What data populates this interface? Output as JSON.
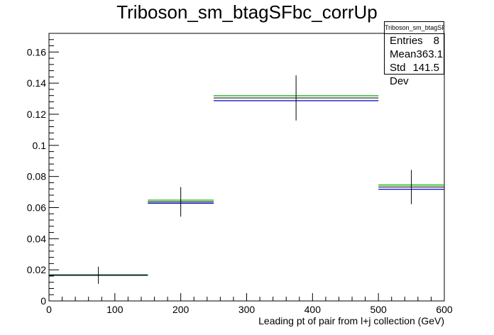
{
  "chart_data": {
    "type": "histogram",
    "title": "Triboson_sm_btagSFbc_corrUp",
    "xlabel": "Leading pt of pair from l+j collection (GeV)",
    "ylabel": "",
    "xlim": [
      0,
      600
    ],
    "ylim": [
      0,
      0.172
    ],
    "x_ticks": [
      "0",
      "100",
      "200",
      "300",
      "400",
      "500",
      "600"
    ],
    "y_ticks": [
      "0",
      "0.02",
      "0.04",
      "0.06",
      "0.08",
      "0.1",
      "0.12",
      "0.14",
      "0.16"
    ],
    "grid": false,
    "bins": [
      {
        "x_low": 0,
        "x_high": 150,
        "center": 75,
        "value": 0.0165,
        "error": 0.0055
      },
      {
        "x_low": 150,
        "x_high": 250,
        "center": 200,
        "value": 0.0637,
        "error": 0.0095
      },
      {
        "x_low": 250,
        "x_high": 500,
        "center": 375,
        "value": 0.1305,
        "error": 0.0145
      },
      {
        "x_low": 500,
        "x_high": 600,
        "center": 550,
        "value": 0.0732,
        "error": 0.011
      }
    ],
    "series": [
      {
        "name": "green",
        "color": "#00b000",
        "values": [
          0.0168,
          0.0648,
          0.1319,
          0.0745
        ]
      },
      {
        "name": "blue",
        "color": "#0000c8",
        "values": [
          0.0165,
          0.0628,
          0.1287,
          0.0718
        ]
      }
    ],
    "nominal_color": "#000000",
    "stats": {
      "title": "Triboson_sm_btagSFbc_corrUp",
      "entries_label": "Entries",
      "entries_value": "8",
      "mean_label": "Mean",
      "mean_value": "363.1",
      "stddev_label": "Std Dev",
      "stddev_value": "141.5"
    }
  }
}
